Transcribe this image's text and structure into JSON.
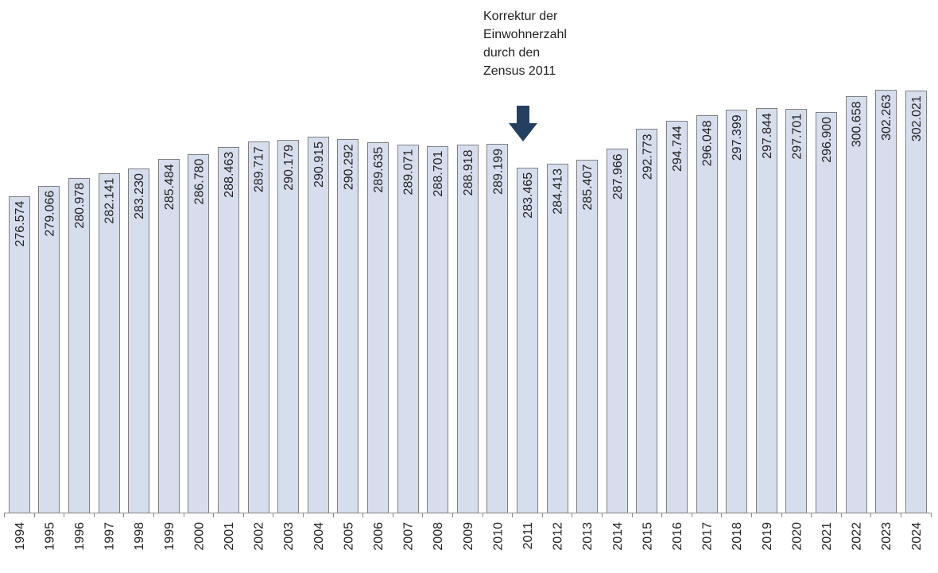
{
  "chart_data": {
    "type": "bar",
    "title": "",
    "xlabel": "",
    "ylabel": "",
    "ylim": [
      200000,
      324000
    ],
    "grid": false,
    "categories": [
      "1994",
      "1995",
      "1996",
      "1997",
      "1998",
      "1999",
      "2000",
      "2001",
      "2002",
      "2003",
      "2004",
      "2005",
      "2006",
      "2007",
      "2008",
      "2009",
      "2010",
      "2011",
      "2012",
      "2013",
      "2014",
      "2015",
      "2016",
      "2017",
      "2018",
      "2019",
      "2020",
      "2021",
      "2022",
      "2023",
      "2024"
    ],
    "values": [
      276574,
      279066,
      280978,
      282141,
      283230,
      285484,
      286780,
      288463,
      289717,
      290179,
      290915,
      290292,
      289635,
      289071,
      288701,
      288918,
      289199,
      283465,
      284413,
      285407,
      287966,
      292773,
      294744,
      296048,
      297399,
      297844,
      297701,
      296900,
      300658,
      302263,
      302021
    ],
    "data_labels": [
      "276.574",
      "279.066",
      "280.978",
      "282.141",
      "283.230",
      "285.484",
      "286.780",
      "288.463",
      "289.717",
      "290.179",
      "290.915",
      "290.292",
      "289.635",
      "289.071",
      "288.701",
      "288.918",
      "289.199",
      "283.465",
      "284.413",
      "285.407",
      "287.966",
      "292.773",
      "294.744",
      "296.048",
      "297.399",
      "297.844",
      "297.701",
      "296.900",
      "300.658",
      "302.263",
      "302.021"
    ],
    "annotation": {
      "lines": [
        "Korrektur der",
        "Einwohnerzahl",
        "durch den",
        "Zensus 2011"
      ],
      "target_category": "2011"
    },
    "colors": {
      "bar_fill": "#d6deee",
      "bar_stroke": "#7f7f7f",
      "arrow": "#243f60",
      "text": "#222222"
    }
  }
}
